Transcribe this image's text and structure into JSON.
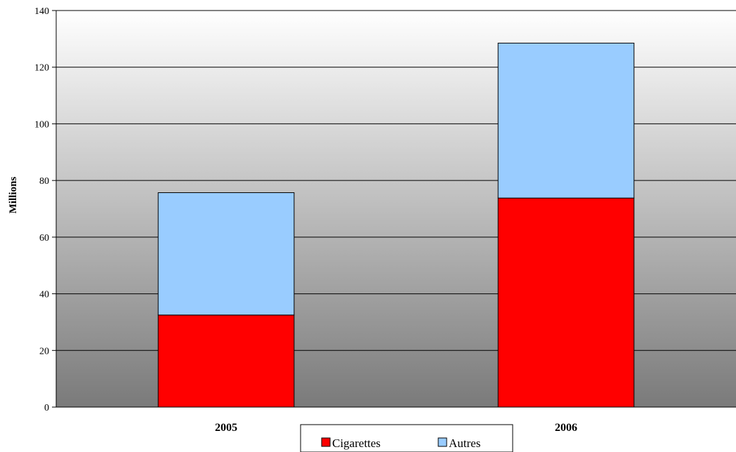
{
  "chart_data": {
    "type": "bar",
    "stacked": true,
    "categories": [
      "2005",
      "2006"
    ],
    "series": [
      {
        "name": "Cigarettes",
        "values": [
          32.5,
          73.8
        ],
        "color": "#ff0000"
      },
      {
        "name": "Autres",
        "values": [
          43.2,
          54.7
        ],
        "color": "#99ccff"
      }
    ],
    "ylabel": "Millions",
    "ylim": [
      0,
      140
    ],
    "yticks": [
      0,
      20,
      40,
      60,
      80,
      100,
      120,
      140
    ],
    "grid": true,
    "legend": "bottom",
    "background": "gradient white-to-gray"
  }
}
